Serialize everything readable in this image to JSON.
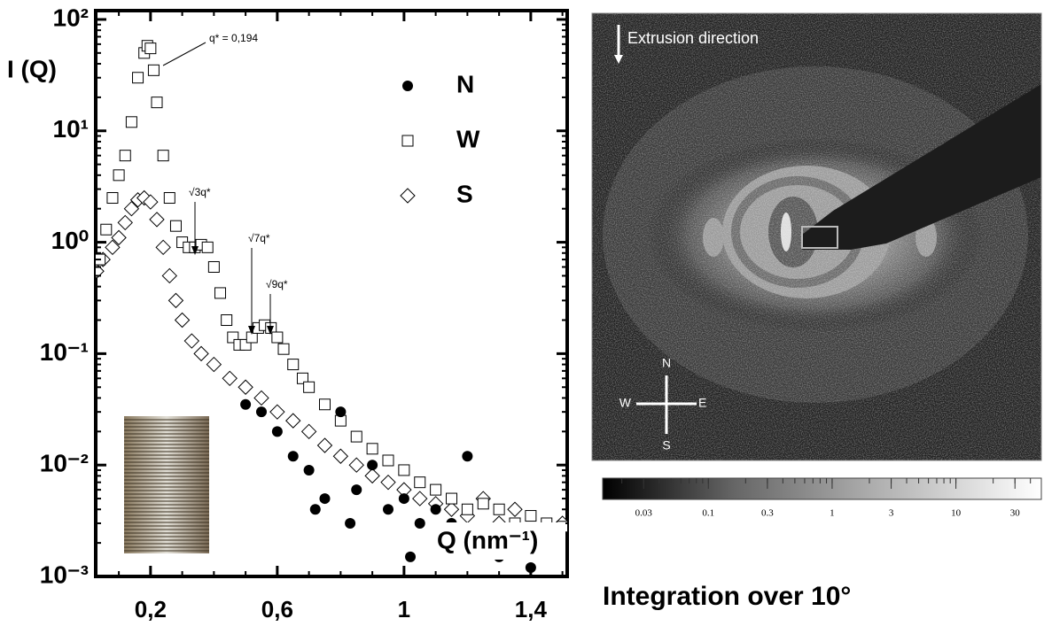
{
  "chart_data": [
    {
      "type": "scatter",
      "ylabel": "I (Q)",
      "xlabel": "Q (nm⁻¹)",
      "log_y": true,
      "legend": "upper right",
      "xlim": [
        0.027,
        1.515
      ],
      "ylim": [
        0.001,
        120
      ],
      "xticks": [
        {
          "value": 0.2,
          "label": "0,2"
        },
        {
          "value": 0.6,
          "label": "0,6"
        },
        1,
        {
          "value": 1.4,
          "label": "1,4"
        }
      ],
      "yticks": [
        {
          "value": 0.001,
          "label": "10⁻³"
        },
        {
          "value": 0.01,
          "label": "10⁻²"
        },
        {
          "value": 0.1,
          "label": "10⁻¹"
        },
        {
          "value": 1,
          "label": "10⁰"
        },
        {
          "value": 10,
          "label": "10¹"
        },
        {
          "value": 100,
          "label": "10²"
        }
      ],
      "annotations": [
        "q* = 0,194",
        "√3q*",
        "√7q*",
        "√9q*"
      ],
      "series": [
        {
          "name": "N",
          "marker": "circle",
          "color": "#000000",
          "x": [
            0.5,
            0.55,
            0.6,
            0.65,
            0.7,
            0.72,
            0.75,
            0.8,
            0.83,
            0.85,
            0.9,
            0.95,
            1.0,
            1.02,
            1.05,
            1.1,
            1.15,
            1.2,
            1.25,
            1.3,
            1.4
          ],
          "values": [
            0.035,
            0.03,
            0.02,
            0.012,
            0.009,
            0.004,
            0.005,
            0.03,
            0.003,
            0.006,
            0.01,
            0.004,
            0.005,
            0.0015,
            0.003,
            0.004,
            0.003,
            0.012,
            0.002,
            0.0015,
            0.0012
          ]
        },
        {
          "name": "W",
          "marker": "square",
          "color": "#000000",
          "x": [
            0.04,
            0.06,
            0.08,
            0.1,
            0.12,
            0.14,
            0.16,
            0.18,
            0.19,
            0.2,
            0.21,
            0.22,
            0.24,
            0.26,
            0.28,
            0.3,
            0.32,
            0.34,
            0.36,
            0.38,
            0.4,
            0.42,
            0.44,
            0.46,
            0.48,
            0.5,
            0.52,
            0.54,
            0.56,
            0.58,
            0.6,
            0.62,
            0.65,
            0.68,
            0.7,
            0.75,
            0.8,
            0.85,
            0.9,
            0.95,
            1.0,
            1.05,
            1.1,
            1.15,
            1.2,
            1.25,
            1.3,
            1.35,
            1.4,
            1.45,
            1.5
          ],
          "values": [
            0.7,
            1.3,
            2.5,
            4,
            6,
            12,
            30,
            50,
            58,
            55,
            35,
            18,
            6,
            2.5,
            1.4,
            1.0,
            0.9,
            0.9,
            0.95,
            0.9,
            0.6,
            0.35,
            0.2,
            0.14,
            0.12,
            0.12,
            0.14,
            0.17,
            0.18,
            0.17,
            0.14,
            0.11,
            0.08,
            0.06,
            0.05,
            0.035,
            0.025,
            0.018,
            0.014,
            0.011,
            0.009,
            0.007,
            0.006,
            0.005,
            0.004,
            0.0045,
            0.004,
            0.003,
            0.0035,
            0.003,
            0.0028
          ]
        },
        {
          "name": "S",
          "marker": "diamond",
          "color": "#000000",
          "x": [
            0.03,
            0.05,
            0.08,
            0.1,
            0.12,
            0.14,
            0.16,
            0.18,
            0.2,
            0.22,
            0.24,
            0.26,
            0.28,
            0.3,
            0.33,
            0.36,
            0.4,
            0.45,
            0.5,
            0.55,
            0.6,
            0.65,
            0.7,
            0.75,
            0.8,
            0.85,
            0.9,
            0.95,
            1.0,
            1.05,
            1.1,
            1.15,
            1.2,
            1.25,
            1.3,
            1.35,
            1.4,
            1.45,
            1.5
          ],
          "values": [
            0.55,
            0.7,
            0.9,
            1.1,
            1.5,
            2.0,
            2.4,
            2.5,
            2.3,
            1.6,
            0.9,
            0.5,
            0.3,
            0.2,
            0.13,
            0.1,
            0.08,
            0.06,
            0.05,
            0.04,
            0.03,
            0.025,
            0.02,
            0.015,
            0.012,
            0.01,
            0.008,
            0.007,
            0.006,
            0.005,
            0.0045,
            0.004,
            0.0035,
            0.005,
            0.003,
            0.004,
            0.0025,
            0.002,
            0.003
          ]
        }
      ]
    },
    {
      "type": "heatmap",
      "annotation": "Extrusion direction",
      "compass": {
        "n": "N",
        "w": "W",
        "e": "E",
        "s": "S"
      },
      "colorbar": {
        "log": true,
        "lim": [
          0.014,
          49
        ],
        "ticks": [
          0.03,
          0.1,
          0.3,
          1,
          3,
          10,
          30
        ]
      },
      "caption": "Integration over 10°"
    }
  ]
}
